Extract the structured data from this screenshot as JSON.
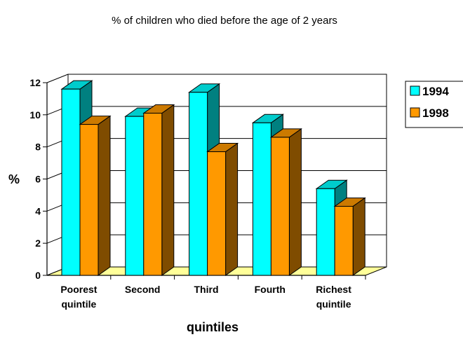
{
  "chart_data": {
    "type": "bar",
    "title": "% of children who died before the age of 2 years",
    "xlabel": "quintiles",
    "ylabel": "%",
    "ylim": [
      0,
      12
    ],
    "yticks": [
      "0",
      "2",
      "4",
      "6",
      "8",
      "10",
      "12"
    ],
    "categories": [
      [
        "Poorest",
        "quintile"
      ],
      [
        "Second"
      ],
      [
        "Third"
      ],
      [
        "Fourth"
      ],
      [
        "Richest",
        "quintile"
      ]
    ],
    "series": [
      {
        "name": "1994",
        "values": [
          11.6,
          9.9,
          11.4,
          9.5,
          5.4
        ]
      },
      {
        "name": "1998",
        "values": [
          9.4,
          10.1,
          7.7,
          8.6,
          4.3
        ]
      }
    ],
    "grid": true,
    "legend": "right",
    "colors": {
      "s1_front": "#00ffff",
      "s1_side": "#008080",
      "s1_top": "#00cccc",
      "s2_front": "#ff9900",
      "s2_side": "#7f4c00",
      "s2_top": "#cc7a00",
      "floor": "#ffff99"
    }
  }
}
